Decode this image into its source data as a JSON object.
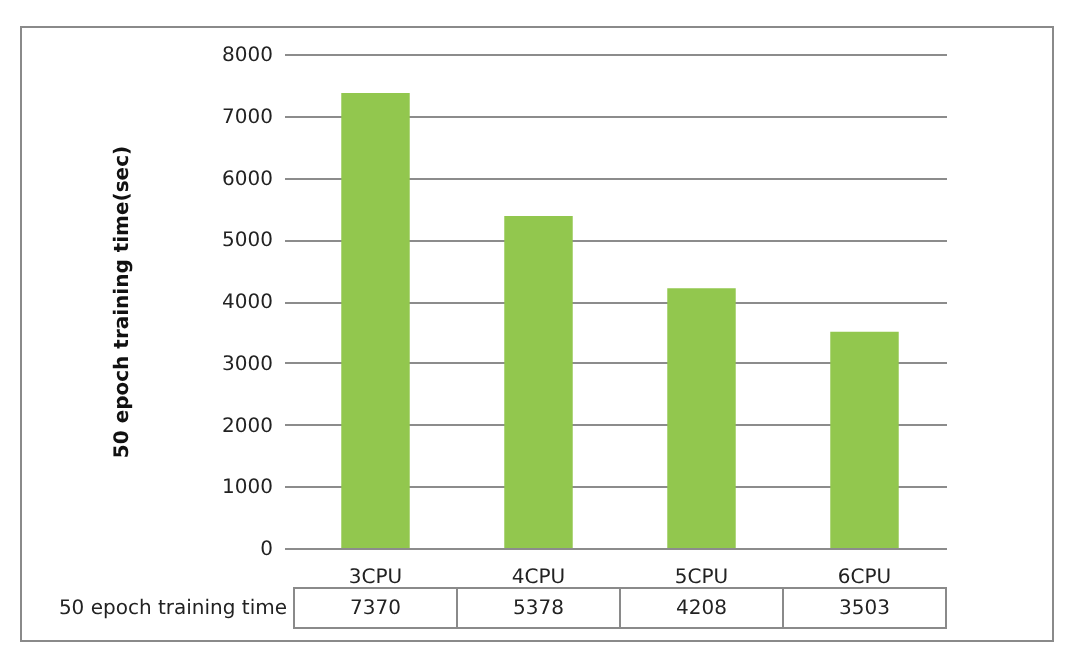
{
  "chart_data": {
    "type": "bar",
    "ylabel": "50 epoch training time(sec)",
    "categories": [
      "3CPU",
      "4CPU",
      "5CPU",
      "6CPU"
    ],
    "series": [
      {
        "name": "50 epoch training time",
        "color": "#92c74e",
        "values": [
          7370,
          5378,
          4208,
          3503
        ]
      }
    ],
    "ylim": [
      0,
      8000
    ],
    "yticks": [
      0,
      1000,
      2000,
      3000,
      4000,
      5000,
      6000,
      7000,
      8000
    ],
    "grid": "y",
    "data_labels": true
  }
}
